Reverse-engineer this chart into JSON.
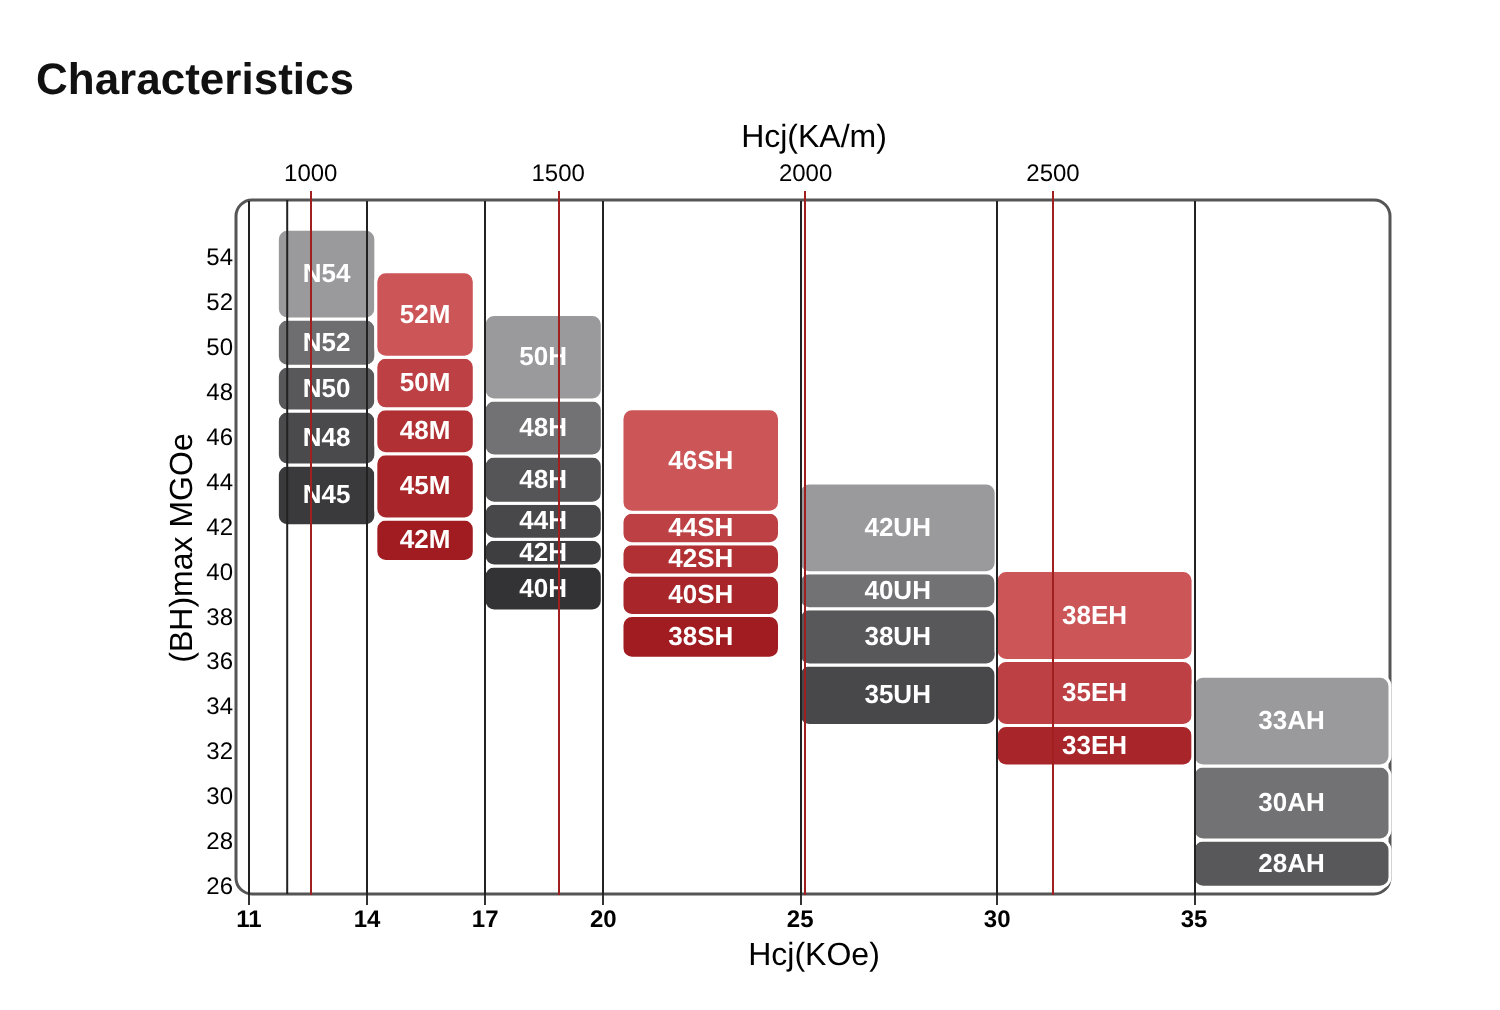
{
  "chart_data": {
    "type": "bar",
    "title": "Characteristics",
    "xlabel": "Hcj(KOe)",
    "x2label": "Hcj(KA/m)",
    "ylabel": "(BH)max MGOe",
    "xlim": [
      10.7,
      40
    ],
    "xticks": [
      11,
      14,
      17,
      20,
      25,
      30,
      35
    ],
    "x2lim": [
      851,
      3183
    ],
    "x2ticks": [
      1000,
      1500,
      2000,
      2500
    ],
    "ylim": [
      25.6,
      56.5
    ],
    "yticks": [
      26,
      28,
      30,
      32,
      34,
      36,
      38,
      40,
      42,
      44,
      46,
      48,
      50,
      52,
      54
    ],
    "grid": "x",
    "ref_lines": [
      {
        "axis": "x",
        "value": 12,
        "color": "#222222"
      }
    ],
    "series": [
      {
        "x": [
          13,
          15.5,
          18.5,
          22.5,
          27.5,
          32.5,
          37.5
        ],
        "base": [
          42.0,
          40.4,
          38.2,
          36.1,
          33.1,
          31.3,
          25.9
        ],
        "values": [
          2.7,
          1.9,
          2.0,
          1.9,
          2.7,
          1.8,
          2.1
        ],
        "colors": [
          "#3a3a3c",
          "#a01c20",
          "#333335",
          "#a01c20",
          "#48484a",
          "#a8262a",
          "#58585a"
        ]
      },
      {
        "x": [
          13,
          15.5,
          18.5,
          22.5,
          27.5,
          32.5,
          37.5
        ],
        "base": [
          44.7,
          42.3,
          40.2,
          38.0,
          35.8,
          33.1,
          28.0
        ],
        "values": [
          2.4,
          2.9,
          1.2,
          1.8,
          2.5,
          2.9,
          3.3
        ],
        "colors": [
          "#4a4a4c",
          "#a8262a",
          "#3e3e40",
          "#a8262a",
          "#58585a",
          "#bc4044",
          "#727274"
        ]
      },
      {
        "x": [
          13,
          15.5,
          18.5,
          22.5,
          27.5,
          32.5,
          37.5
        ],
        "base": [
          47.1,
          45.2,
          41.4,
          39.8,
          38.3,
          36.0,
          31.3
        ],
        "values": [
          2.0,
          2.0,
          1.6,
          1.4,
          1.6,
          4.0,
          4.0
        ],
        "colors": [
          "#58585a",
          "#b03034",
          "#48484a",
          "#b03034",
          "#727274",
          "#cc5558",
          "#9a9a9c"
        ]
      },
      {
        "x": [
          13,
          15.5,
          18.5,
          22.5,
          27.5
        ],
        "base": [
          49.1,
          47.2,
          43.0,
          41.2,
          39.9
        ],
        "values": [
          2.1,
          2.3,
          2.1,
          1.4,
          4.0
        ],
        "colors": [
          "#6e6e70",
          "#bc4044",
          "#555557",
          "#bc4044",
          "#9a9a9c"
        ]
      },
      {
        "x": [
          13,
          15.5,
          18.5,
          22.5
        ],
        "base": [
          51.2,
          49.5,
          45.1,
          42.6
        ],
        "values": [
          4.0,
          3.8,
          2.5,
          4.6
        ],
        "colors": [
          "#9a9a9c",
          "#cc5558",
          "#727274",
          "#cc5558"
        ]
      },
      {
        "x": [
          18.5
        ],
        "base": [
          47.6
        ],
        "values": [
          3.8
        ],
        "colors": [
          "#9a9a9c"
        ]
      }
    ],
    "annotations": [
      "N45",
      "42M",
      "40H",
      "38SH",
      "35UH",
      "33EH",
      "28AH",
      "N48",
      "45M",
      "42H",
      "40SH",
      "38UH",
      "35EH",
      "30AH",
      "N50",
      "48M",
      "44H",
      "42SH",
      "40UH",
      "38EH",
      "33AH",
      "N52",
      "50M",
      "48H",
      "44SH",
      "42UH",
      "N54",
      "52M",
      "48H",
      "46SH",
      "50H"
    ]
  }
}
